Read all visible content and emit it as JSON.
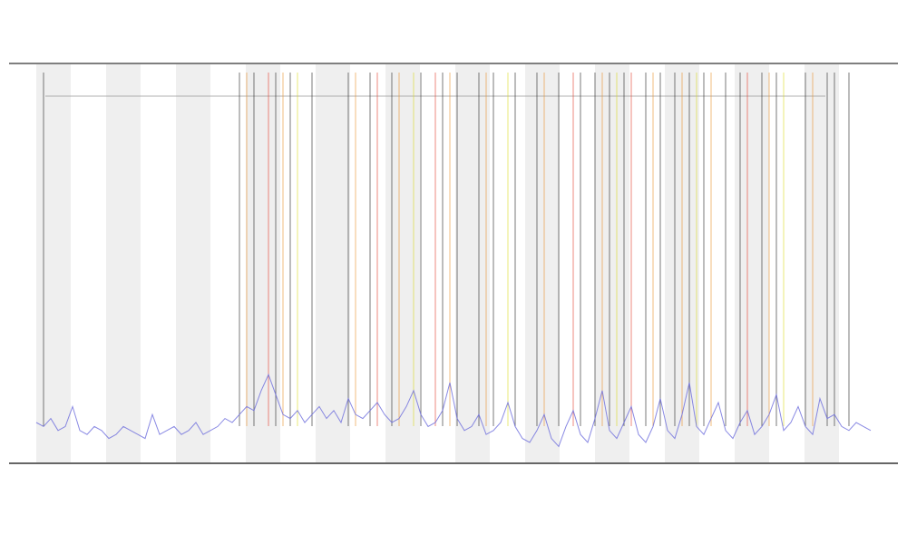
{
  "chart_data": {
    "type": "line",
    "xlim": [
      0,
      115
    ],
    "ylim": [
      0,
      100
    ],
    "series": [
      {
        "color": "#6b6bdc",
        "values": [
          10,
          9,
          11,
          8,
          9,
          14,
          8,
          7,
          9,
          8,
          6,
          7,
          9,
          8,
          7,
          6,
          12,
          7,
          8,
          9,
          7,
          8,
          10,
          7,
          8,
          9,
          11,
          10,
          12,
          14,
          13,
          18,
          22,
          17,
          12,
          11,
          13,
          10,
          12,
          14,
          11,
          13,
          10,
          16,
          12,
          11,
          13,
          15,
          12,
          10,
          11,
          14,
          18,
          12,
          9,
          10,
          13,
          20,
          11,
          8,
          9,
          12,
          7,
          8,
          10,
          15,
          9,
          6,
          5,
          8,
          12,
          6,
          4,
          9,
          13,
          7,
          5,
          11,
          18,
          8,
          6,
          10,
          14,
          7,
          5,
          9,
          16,
          8,
          6,
          12,
          20,
          9,
          7,
          11,
          15,
          8,
          6,
          10,
          13,
          7,
          9,
          12,
          17,
          8,
          10,
          14,
          9,
          7,
          16,
          11,
          12,
          9,
          8,
          10,
          9,
          8
        ]
      }
    ],
    "events": [
      {
        "color": "#222222",
        "x": [
          1,
          28,
          30,
          33,
          35,
          38,
          43,
          46,
          49,
          53,
          56,
          58,
          61,
          63,
          66,
          69,
          72,
          75,
          77,
          79,
          81,
          84,
          86,
          88,
          90,
          92,
          95,
          97,
          100,
          102,
          106,
          109,
          110,
          112
        ]
      },
      {
        "color": "#e8902a",
        "x": [
          29,
          34,
          44,
          50,
          57,
          62,
          70,
          78,
          85,
          89,
          93,
          101,
          107
        ]
      },
      {
        "color": "#e23a2a",
        "x": [
          32,
          47,
          55,
          74,
          82,
          98
        ]
      },
      {
        "color": "#d8d820",
        "x": [
          36,
          52,
          65,
          80,
          91,
          103
        ]
      }
    ]
  }
}
